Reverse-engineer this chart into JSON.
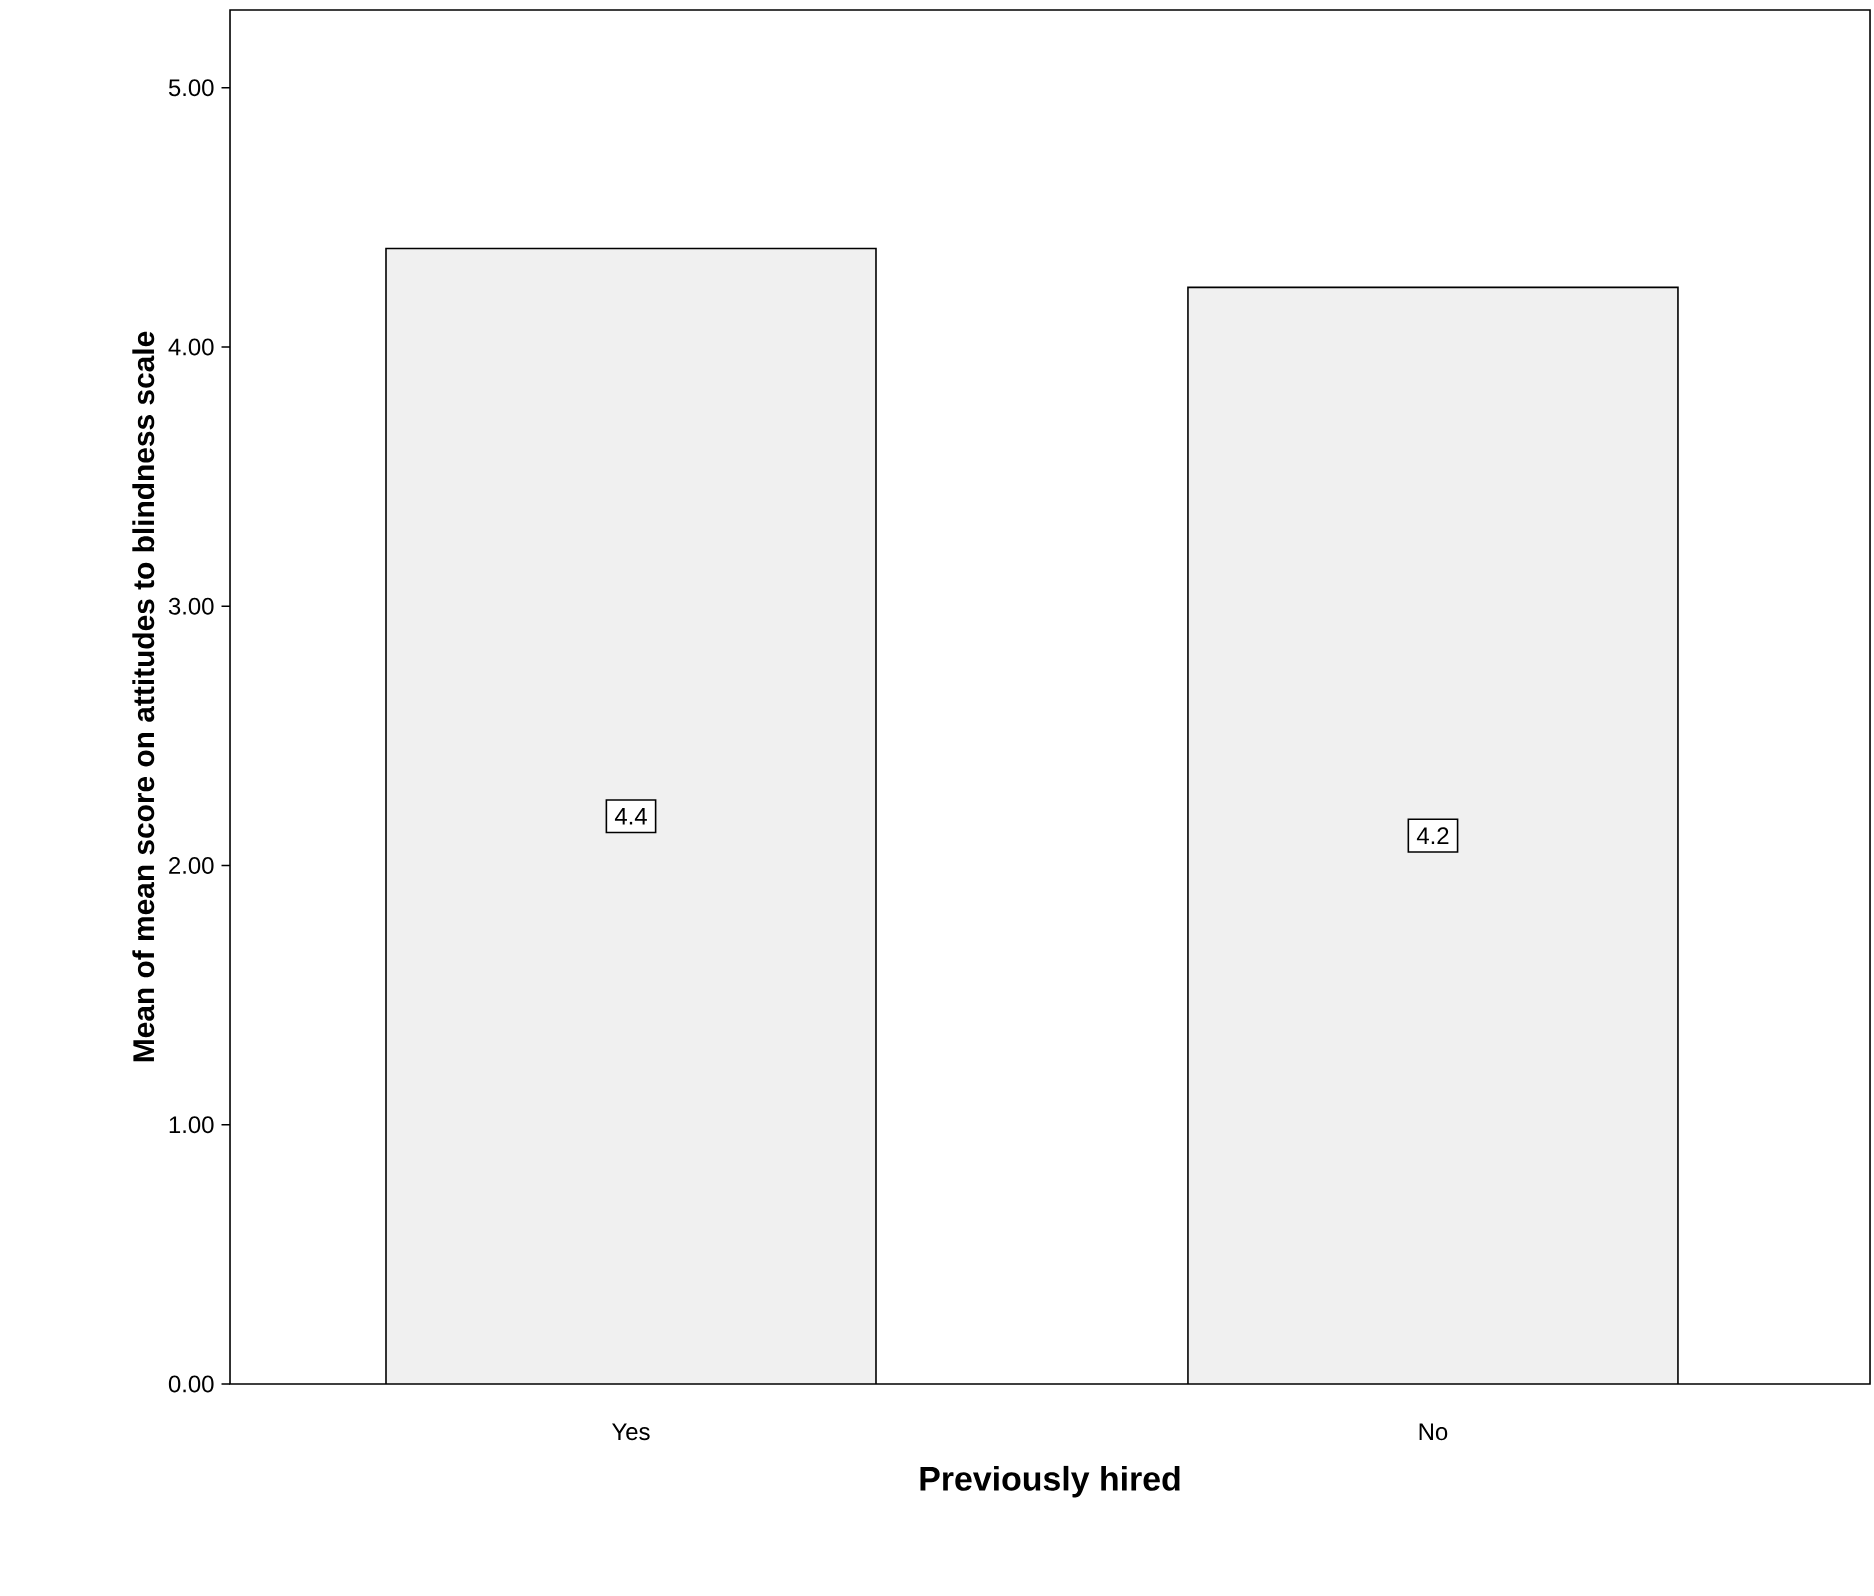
{
  "chart_data": {
    "type": "bar",
    "xlabel": "Previously hired",
    "ylabel": "Mean of mean score on attitudes to blindness scale",
    "categories": [
      "Yes",
      "No"
    ],
    "values": [
      4.38,
      4.23
    ],
    "value_labels": [
      "4.4",
      "4.2"
    ],
    "color": "#f0f0f0",
    "ylim": [
      0,
      5.3
    ],
    "yticks": [
      {
        "value": 0,
        "label": "0.00"
      },
      {
        "value": 1,
        "label": "1.00"
      },
      {
        "value": 2,
        "label": "2.00"
      },
      {
        "value": 3,
        "label": "3.00"
      },
      {
        "value": 4,
        "label": "4.00"
      },
      {
        "value": 5,
        "label": "5.00"
      }
    ],
    "grid": false
  }
}
